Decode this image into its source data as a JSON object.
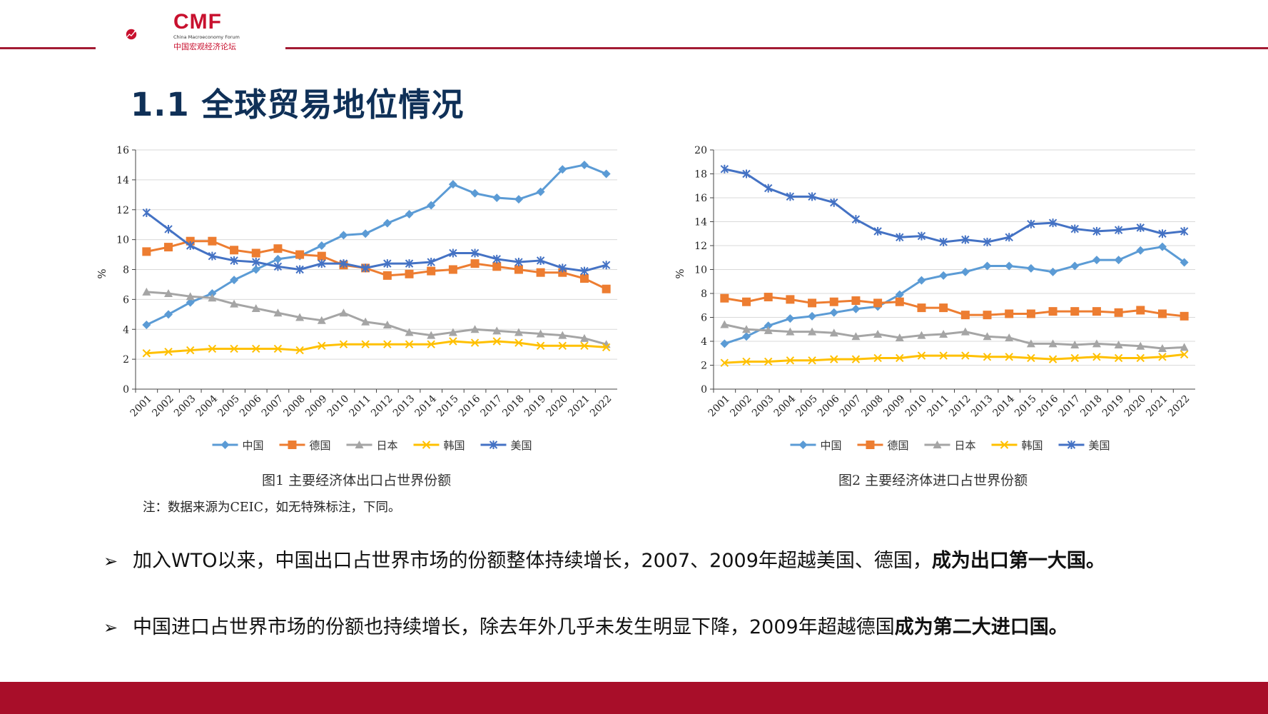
{
  "header": {
    "logo_text": "CMF",
    "logo_subtitle": "China Macroeconomy Forum",
    "logo_cn": "中国宏观经济论坛",
    "brand_color": "#a31b33"
  },
  "title": "1.1 全球贸易地位情况",
  "series_names": [
    "中国",
    "德国",
    "日本",
    "韩国",
    "美国"
  ],
  "series_colors": [
    "#5b9bd5",
    "#ed7d31",
    "#a5a5a5",
    "#ffc000",
    "#4472c4"
  ],
  "series_markers": [
    "diamond",
    "square",
    "triangle",
    "x",
    "star"
  ],
  "chart_data": [
    {
      "type": "line",
      "title": "",
      "ylabel": "%",
      "xlabel": "",
      "ylim": [
        0,
        16
      ],
      "yticks": [
        0,
        2,
        4,
        6,
        8,
        10,
        12,
        14,
        16
      ],
      "grid": true,
      "legend": "bottom",
      "categories": [
        "2001",
        "2002",
        "2003",
        "2004",
        "2005",
        "2006",
        "2007",
        "2008",
        "2009",
        "2010",
        "2011",
        "2012",
        "2013",
        "2014",
        "2015",
        "2016",
        "2017",
        "2018",
        "2019",
        "2020",
        "2021",
        "2022"
      ],
      "series": [
        {
          "name": "中国",
          "values": [
            4.3,
            5.0,
            5.8,
            6.4,
            7.3,
            8.0,
            8.7,
            8.9,
            9.6,
            10.3,
            10.4,
            11.1,
            11.7,
            12.3,
            13.7,
            13.1,
            12.8,
            12.7,
            13.2,
            14.7,
            15.0,
            14.4
          ]
        },
        {
          "name": "德国",
          "values": [
            9.2,
            9.5,
            9.9,
            9.9,
            9.3,
            9.1,
            9.4,
            9.0,
            8.9,
            8.3,
            8.1,
            7.6,
            7.7,
            7.9,
            8.0,
            8.4,
            8.2,
            8.0,
            7.8,
            7.8,
            7.4,
            6.7
          ]
        },
        {
          "name": "日本",
          "values": [
            6.5,
            6.4,
            6.2,
            6.1,
            5.7,
            5.4,
            5.1,
            4.8,
            4.6,
            5.1,
            4.5,
            4.3,
            3.8,
            3.6,
            3.8,
            4.0,
            3.9,
            3.8,
            3.7,
            3.6,
            3.4,
            3.0
          ]
        },
        {
          "name": "韩国",
          "values": [
            2.4,
            2.5,
            2.6,
            2.7,
            2.7,
            2.7,
            2.7,
            2.6,
            2.9,
            3.0,
            3.0,
            3.0,
            3.0,
            3.0,
            3.2,
            3.1,
            3.2,
            3.1,
            2.9,
            2.9,
            2.9,
            2.8
          ]
        },
        {
          "name": "美国",
          "values": [
            11.8,
            10.7,
            9.6,
            8.9,
            8.6,
            8.5,
            8.2,
            8.0,
            8.4,
            8.4,
            8.1,
            8.4,
            8.4,
            8.5,
            9.1,
            9.1,
            8.7,
            8.5,
            8.6,
            8.1,
            7.9,
            8.3
          ]
        }
      ],
      "caption": "图1  主要经济体出口占世界份额",
      "note": "注：数据来源为CEIC，如无特殊标注，下同。"
    },
    {
      "type": "line",
      "title": "",
      "ylabel": "%",
      "xlabel": "",
      "ylim": [
        0,
        20
      ],
      "yticks": [
        0,
        2,
        4,
        6,
        8,
        10,
        12,
        14,
        16,
        18,
        20
      ],
      "grid": true,
      "legend": "bottom",
      "categories": [
        "2001",
        "2002",
        "2003",
        "2004",
        "2005",
        "2006",
        "2007",
        "2008",
        "2009",
        "2010",
        "2011",
        "2012",
        "2013",
        "2014",
        "2015",
        "2016",
        "2017",
        "2018",
        "2019",
        "2020",
        "2021",
        "2022"
      ],
      "series": [
        {
          "name": "中国",
          "values": [
            3.8,
            4.4,
            5.3,
            5.9,
            6.1,
            6.4,
            6.7,
            6.9,
            7.9,
            9.1,
            9.5,
            9.8,
            10.3,
            10.3,
            10.1,
            9.8,
            10.3,
            10.8,
            10.8,
            11.6,
            11.9,
            10.6
          ]
        },
        {
          "name": "德国",
          "values": [
            7.6,
            7.3,
            7.7,
            7.5,
            7.2,
            7.3,
            7.4,
            7.2,
            7.3,
            6.8,
            6.8,
            6.2,
            6.2,
            6.3,
            6.3,
            6.5,
            6.5,
            6.5,
            6.4,
            6.6,
            6.3,
            6.1
          ]
        },
        {
          "name": "日本",
          "values": [
            5.4,
            5.0,
            4.9,
            4.8,
            4.8,
            4.7,
            4.4,
            4.6,
            4.3,
            4.5,
            4.6,
            4.8,
            4.4,
            4.3,
            3.8,
            3.8,
            3.7,
            3.8,
            3.7,
            3.6,
            3.4,
            3.5
          ]
        },
        {
          "name": "韩国",
          "values": [
            2.2,
            2.3,
            2.3,
            2.4,
            2.4,
            2.5,
            2.5,
            2.6,
            2.6,
            2.8,
            2.8,
            2.8,
            2.7,
            2.7,
            2.6,
            2.5,
            2.6,
            2.7,
            2.6,
            2.6,
            2.7,
            2.9
          ]
        },
        {
          "name": "美国",
          "values": [
            18.4,
            18.0,
            16.8,
            16.1,
            16.1,
            15.6,
            14.2,
            13.2,
            12.7,
            12.8,
            12.3,
            12.5,
            12.3,
            12.7,
            13.8,
            13.9,
            13.4,
            13.2,
            13.3,
            13.5,
            13.0,
            13.2
          ]
        }
      ],
      "caption": "图2  主要经济体进口占世界份额"
    }
  ],
  "bullets": [
    {
      "arrow": "➢",
      "text": "加入WTO以来，中国出口占世界市场的份额整体持续增长，2007、2009年超越美国、德国，",
      "bold": "成为出口第一大国。"
    },
    {
      "arrow": "➢",
      "text": "中国进口占世界市场的份额也持续增长，除去年外几乎未发生明显下降，2009年超越德国",
      "bold": "成为第二大进口国。"
    }
  ]
}
